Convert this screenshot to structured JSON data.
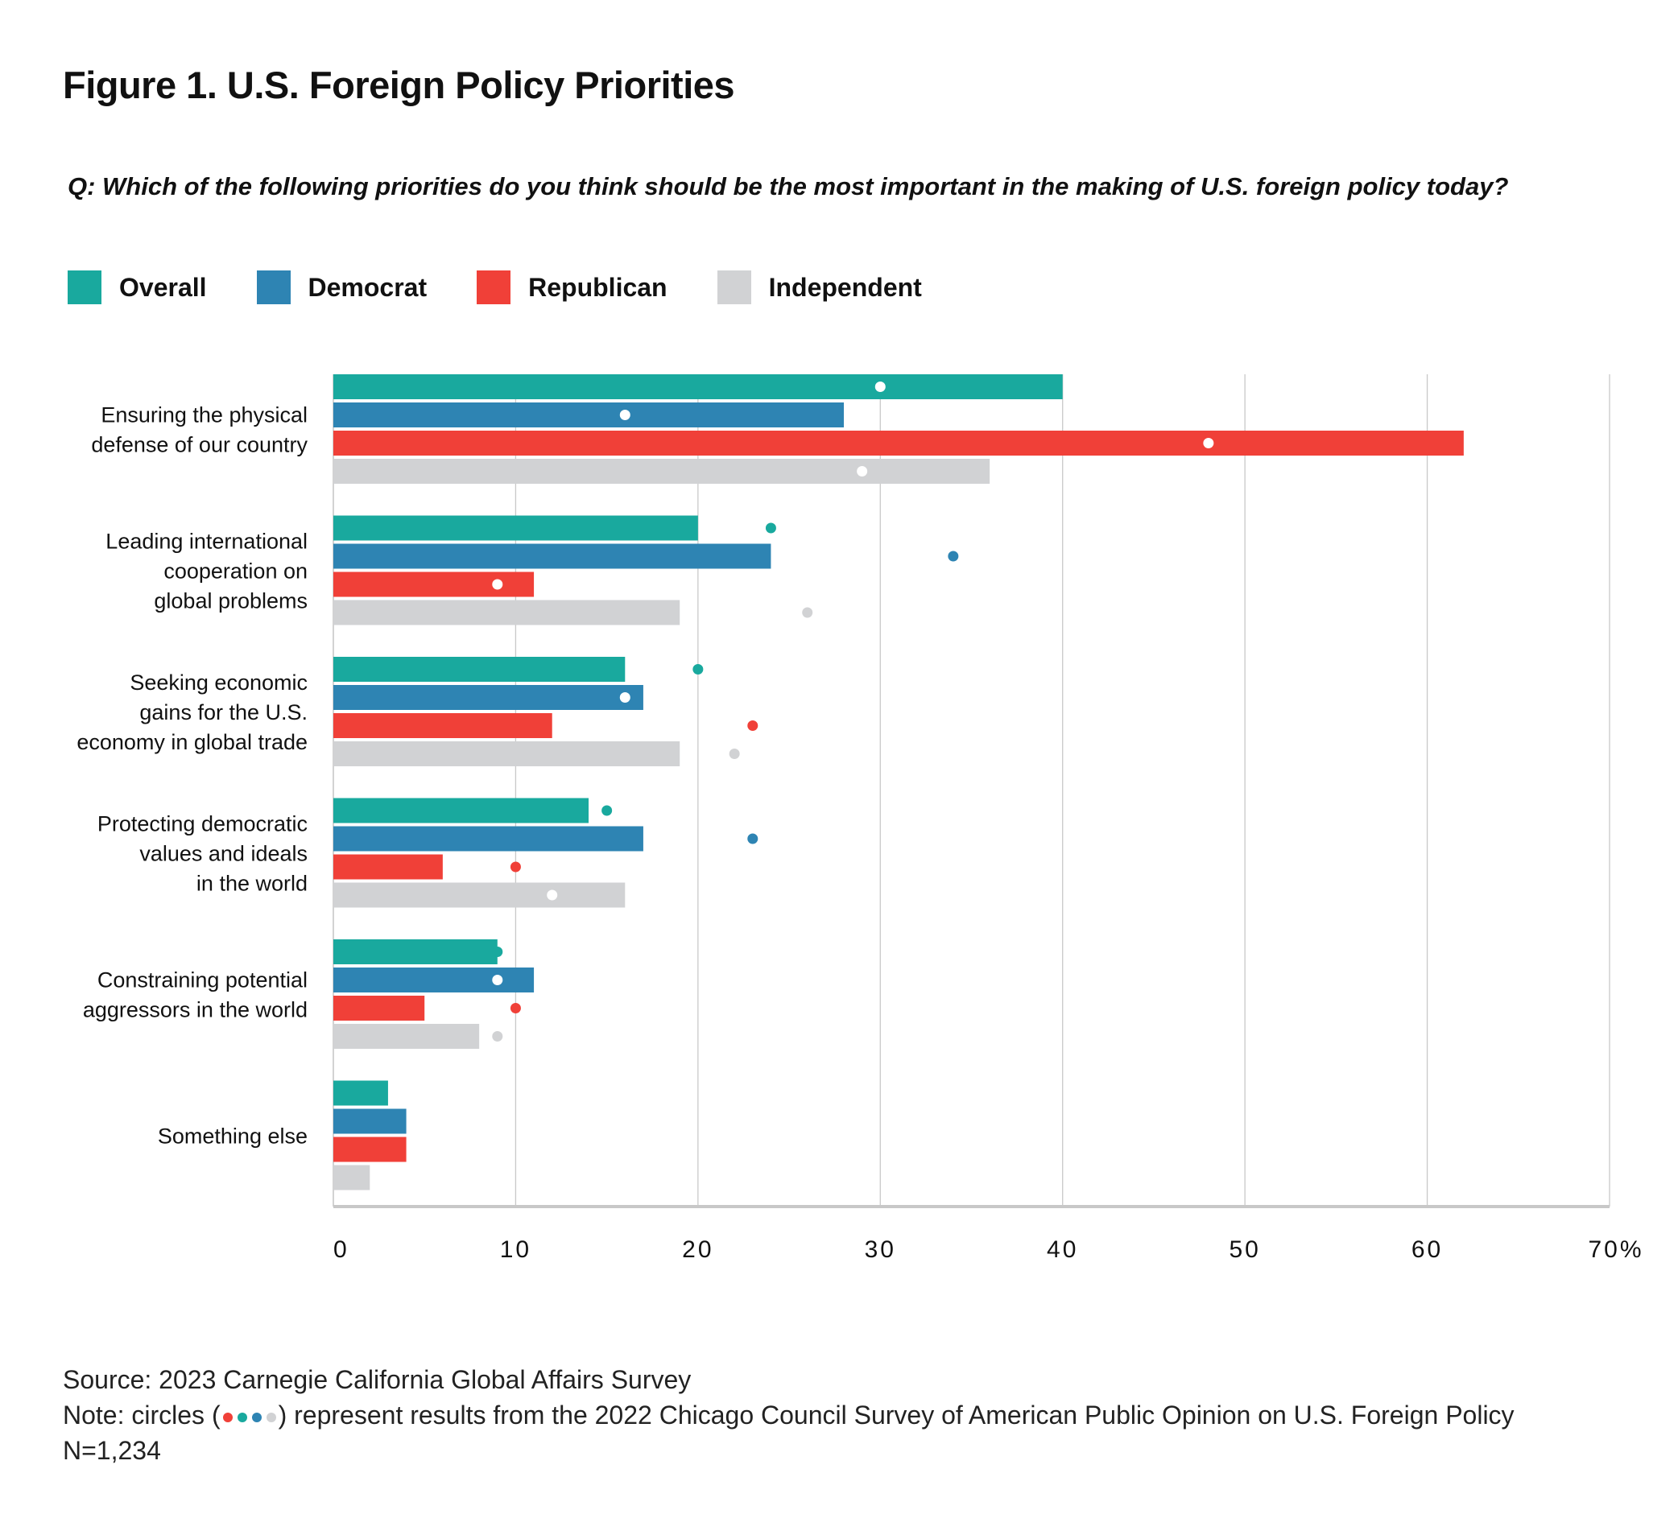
{
  "chart_data": {
    "type": "bar",
    "orientation": "horizontal",
    "title": "Figure 1. U.S. Foreign Policy Priorities",
    "subtitle": "Q: Which of the following priorities do you think should be the most important in the making of U.S. foreign policy today?",
    "categories": [
      [
        "Ensuring the physical",
        "defense of our country"
      ],
      [
        "Leading international",
        "cooperation on",
        "global problems"
      ],
      [
        "Seeking economic",
        "gains for the U.S.",
        "economy in global trade"
      ],
      [
        "Protecting democratic",
        "values and ideals",
        "in the world"
      ],
      [
        "Constraining potential",
        "aggressors in the world"
      ],
      [
        "Something else"
      ]
    ],
    "series": [
      {
        "name": "Overall",
        "color": "#19a99e",
        "values": [
          40,
          20,
          16,
          14,
          9,
          3
        ],
        "circles_2022": [
          30,
          24,
          20,
          15,
          9,
          null
        ]
      },
      {
        "name": "Democrat",
        "color": "#2e84b3",
        "values": [
          28,
          24,
          17,
          17,
          11,
          4
        ],
        "circles_2022": [
          16,
          34,
          16,
          23,
          9,
          null
        ]
      },
      {
        "name": "Republican",
        "color": "#f04038",
        "values": [
          62,
          11,
          12,
          6,
          5,
          4
        ],
        "circles_2022": [
          48,
          9,
          23,
          10,
          10,
          null
        ]
      },
      {
        "name": "Independent",
        "color": "#d1d2d4",
        "values": [
          36,
          19,
          19,
          16,
          8,
          2
        ],
        "circles_2022": [
          29,
          26,
          22,
          12,
          9,
          null
        ]
      }
    ],
    "xlim": [
      0,
      70
    ],
    "xticks": [
      "0",
      "10",
      "20",
      "30",
      "40",
      "50",
      "60",
      "70%"
    ],
    "grid": true,
    "legend_position": "top-left"
  },
  "footer": {
    "source": "Source: 2023 Carnegie California Global Affairs Survey",
    "note_prefix": "Note: circles (",
    "note_suffix": ") represent results from the 2022 Chicago Council Survey of American Public Opinion on U.S. Foreign Policy",
    "note_dot_colors": [
      "#f04038",
      "#19a99e",
      "#2e84b3",
      "#d1d2d4"
    ],
    "n": "N=1,234"
  }
}
